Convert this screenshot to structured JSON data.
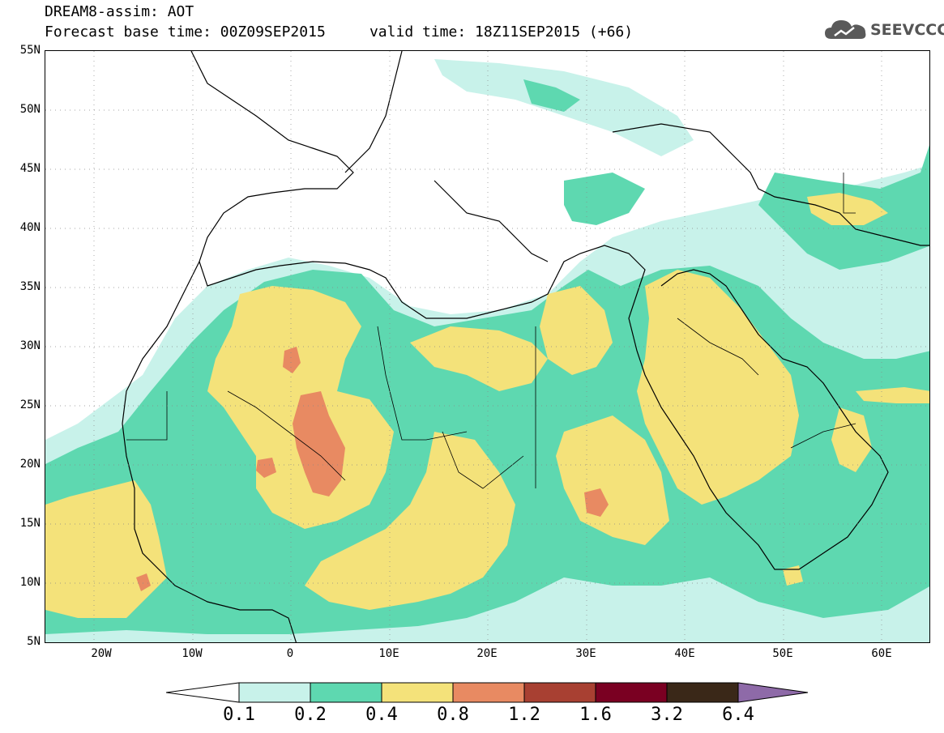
{
  "header": {
    "title_line1": "DREAM8-assim: AOT",
    "title_line2": "Forecast base time: 00Z09SEP2015     valid time: 18Z11SEP2015 (+66)",
    "logo_text": "SEEVCCC"
  },
  "map": {
    "lat_labels": [
      "55N",
      "50N",
      "45N",
      "40N",
      "35N",
      "30N",
      "25N",
      "20N",
      "15N",
      "10N",
      "5N"
    ],
    "lon_labels": [
      "20W",
      "10W",
      "0",
      "10E",
      "20E",
      "30E",
      "40E",
      "50E",
      "60E"
    ],
    "lat_range": [
      5,
      55
    ],
    "lon_range": [
      -25,
      65
    ],
    "grid": "dotted"
  },
  "legend": {
    "labels": [
      "0.1",
      "0.2",
      "0.4",
      "0.8",
      "1.2",
      "1.6",
      "3.2",
      "6.4"
    ],
    "colors": [
      "#ffffff",
      "#c8f2ea",
      "#5ed8b0",
      "#f4e27a",
      "#e88a62",
      "#a84032",
      "#7a0022",
      "#3a2818",
      "#8e6aa8"
    ]
  }
}
